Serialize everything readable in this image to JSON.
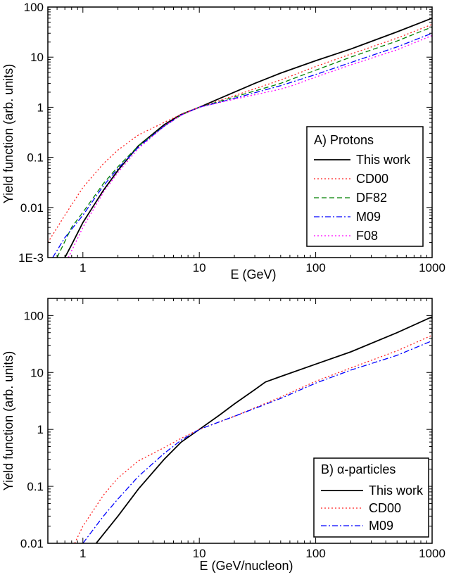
{
  "chart_data": [
    {
      "type": "line",
      "xscale": "log",
      "yscale": "log",
      "xlabel": "E (GeV)",
      "ylabel": "Yield function (arb. units)",
      "xlim": [
        0.5,
        1000
      ],
      "ylim": [
        0.001,
        100
      ],
      "x_ticks": [
        {
          "value": 1,
          "label": "1"
        },
        {
          "value": 10,
          "label": "10"
        },
        {
          "value": 100,
          "label": "100"
        },
        {
          "value": 1000,
          "label": "1000"
        }
      ],
      "y_ticks": [
        {
          "value": 0.001,
          "label": "1E-3"
        },
        {
          "value": 0.01,
          "label": "0.01"
        },
        {
          "value": 0.1,
          "label": "0.1"
        },
        {
          "value": 1,
          "label": "1"
        },
        {
          "value": 10,
          "label": "10"
        },
        {
          "value": 100,
          "label": "100"
        }
      ],
      "legend": {
        "title": "A) Protons",
        "position": "lower-right"
      },
      "grid": false,
      "series": [
        {
          "name": "This work",
          "color": "#000000",
          "dash": "solid",
          "x": [
            0.7,
            0.8,
            1,
            1.5,
            2,
            3,
            5,
            7,
            10,
            15,
            20,
            30,
            50,
            100,
            200,
            500,
            1000
          ],
          "y": [
            0.001,
            0.0018,
            0.005,
            0.022,
            0.055,
            0.17,
            0.45,
            0.72,
            1.0,
            1.5,
            2.0,
            3.0,
            4.8,
            8.5,
            14.5,
            32,
            60
          ]
        },
        {
          "name": "CD00",
          "color": "#ff2020",
          "dash": "dotted",
          "x": [
            0.5,
            0.7,
            1,
            1.5,
            2,
            3,
            5,
            7,
            10,
            20,
            50,
            100,
            200,
            500,
            1000
          ],
          "y": [
            0.002,
            0.007,
            0.025,
            0.075,
            0.14,
            0.28,
            0.5,
            0.72,
            1.0,
            1.7,
            3.5,
            6.5,
            11.5,
            24,
            45
          ]
        },
        {
          "name": "DF82",
          "color": "#008000",
          "dash": "dashed",
          "x": [
            0.6,
            0.8,
            1,
            1.5,
            2,
            3,
            5,
            7,
            10,
            20,
            50,
            100,
            200,
            500,
            1000
          ],
          "y": [
            0.001,
            0.004,
            0.008,
            0.03,
            0.065,
            0.17,
            0.42,
            0.7,
            1.0,
            1.6,
            3.0,
            5.5,
            10,
            21,
            40
          ]
        },
        {
          "name": "M09",
          "color": "#0000ff",
          "dash": "dashdot",
          "x": [
            0.55,
            0.7,
            1,
            1.5,
            2,
            3,
            5,
            7,
            10,
            20,
            50,
            100,
            200,
            500,
            1000
          ],
          "y": [
            0.001,
            0.0025,
            0.007,
            0.027,
            0.06,
            0.16,
            0.42,
            0.7,
            1.0,
            1.5,
            2.7,
            4.5,
            7.8,
            16,
            30
          ]
        },
        {
          "name": "F08",
          "color": "#ff00ff",
          "dash": "dotted",
          "x": [
            0.75,
            1,
            1.5,
            2,
            3,
            5,
            7,
            10,
            20,
            50,
            60,
            100,
            200,
            500,
            1000
          ],
          "y": [
            0.001,
            0.004,
            0.02,
            0.05,
            0.15,
            0.42,
            0.7,
            1.0,
            1.45,
            2.3,
            2.6,
            4.0,
            7.0,
            14,
            27
          ]
        }
      ]
    },
    {
      "type": "line",
      "xscale": "log",
      "yscale": "log",
      "xlabel": "E (GeV/nucleon)",
      "ylabel": "Yield function (arb. units)",
      "xlim": [
        0.5,
        1000
      ],
      "ylim": [
        0.01,
        200
      ],
      "x_ticks": [
        {
          "value": 1,
          "label": "1"
        },
        {
          "value": 10,
          "label": "10"
        },
        {
          "value": 100,
          "label": "100"
        },
        {
          "value": 1000,
          "label": "1000"
        }
      ],
      "y_ticks": [
        {
          "value": 0.01,
          "label": "0.01"
        },
        {
          "value": 0.1,
          "label": "0.1"
        },
        {
          "value": 1,
          "label": "1"
        },
        {
          "value": 10,
          "label": "10"
        },
        {
          "value": 100,
          "label": "100"
        }
      ],
      "legend": {
        "title": "B) α-particles",
        "position": "lower-right"
      },
      "grid": false,
      "series": [
        {
          "name": "This work",
          "color": "#000000",
          "dash": "solid",
          "x": [
            1.3,
            2,
            3,
            5,
            7,
            10,
            15,
            20,
            30,
            37,
            50,
            100,
            200,
            500,
            1000
          ],
          "y": [
            0.01,
            0.03,
            0.09,
            0.3,
            0.6,
            1.0,
            1.8,
            2.8,
            5.0,
            6.8,
            8.5,
            14,
            23,
            50,
            95
          ]
        },
        {
          "name": "CD00",
          "color": "#ff2020",
          "dash": "dotted",
          "x": [
            0.85,
            1,
            1.5,
            2,
            3,
            5,
            7,
            10,
            20,
            50,
            100,
            200,
            500,
            1000
          ],
          "y": [
            0.01,
            0.02,
            0.07,
            0.14,
            0.28,
            0.48,
            0.7,
            1.0,
            1.7,
            3.7,
            7.0,
            12,
            24,
            45
          ]
        },
        {
          "name": "M09",
          "color": "#0000ff",
          "dash": "dashdot",
          "x": [
            1,
            1.5,
            2,
            3,
            5,
            7,
            10,
            20,
            50,
            100,
            200,
            500,
            1000
          ],
          "y": [
            0.01,
            0.03,
            0.06,
            0.15,
            0.38,
            0.65,
            1.0,
            1.7,
            3.5,
            6.5,
            11,
            20,
            36
          ]
        }
      ]
    }
  ]
}
